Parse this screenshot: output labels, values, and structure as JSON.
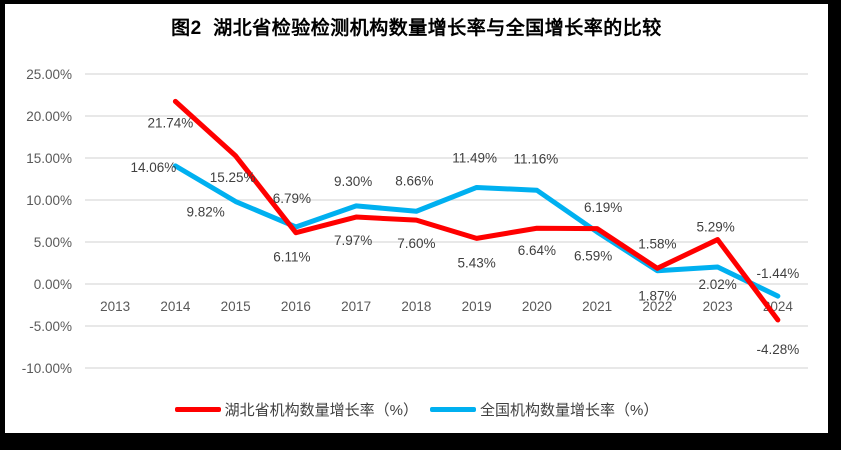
{
  "styles": {
    "frame_color": "#000000",
    "chart_background": "#FFFFFF",
    "grid_color": "#D9D9D9",
    "axis_label_color": "#595959",
    "data_label_color": "#404040",
    "title_color": "#000000"
  },
  "chart_data": {
    "type": "line",
    "title": "图2  湖北省检验检测机构数量增长率与全国增长率的比较",
    "categories": [
      "2013",
      "2014",
      "2015",
      "2016",
      "2017",
      "2018",
      "2019",
      "2020",
      "2021",
      "2022",
      "2023",
      "2024"
    ],
    "series": [
      {
        "name": "湖北省机构数量增长率（%）",
        "color": "#FF0000",
        "values": [
          null,
          21.74,
          15.25,
          6.11,
          7.97,
          7.6,
          5.43,
          6.64,
          6.59,
          1.87,
          5.29,
          -4.28
        ],
        "point_labels": [
          null,
          "21.74%",
          "15.25%",
          "6.11%",
          "7.97%",
          "7.60%",
          "5.43%",
          "6.64%",
          "6.59%",
          "1.87%",
          "5.29%",
          "-4.28%"
        ],
        "label_offsets": [
          null,
          [
            -5,
            22
          ],
          [
            -3,
            22
          ],
          [
            -4,
            25
          ],
          [
            -3,
            24
          ],
          [
            0,
            24
          ],
          [
            0,
            25
          ],
          [
            0,
            23
          ],
          [
            -4,
            28
          ],
          [
            0,
            28
          ],
          [
            -2,
            -12
          ],
          [
            0,
            30
          ]
        ]
      },
      {
        "name": "全国机构数量增长率（%）",
        "color": "#00B0F0",
        "values": [
          null,
          14.06,
          9.82,
          6.79,
          9.3,
          8.66,
          11.49,
          11.16,
          6.19,
          1.58,
          2.02,
          -1.44
        ],
        "point_labels": [
          null,
          "14.06%",
          "9.82%",
          "6.79%",
          "9.30%",
          "8.66%",
          "11.49%",
          "11.16%",
          "6.19%",
          "1.58%",
          "2.02%",
          "-1.44%"
        ],
        "label_offsets": [
          null,
          [
            -22,
            2
          ],
          [
            -30,
            11
          ],
          [
            -4,
            -28
          ],
          [
            -3,
            -24
          ],
          [
            -2,
            -30
          ],
          [
            -2,
            -29
          ],
          [
            -1,
            -31
          ],
          [
            6,
            -24
          ],
          [
            0,
            -26
          ],
          [
            0,
            18
          ],
          [
            0,
            -22
          ]
        ]
      }
    ],
    "y_axis": {
      "min": -10,
      "max": 25,
      "step": 5,
      "ticks": [
        {
          "value": 25,
          "label": "25.00%"
        },
        {
          "value": 20,
          "label": "20.00%"
        },
        {
          "value": 15,
          "label": "15.00%"
        },
        {
          "value": 10,
          "label": "10.00%"
        },
        {
          "value": 5,
          "label": "5.00%"
        },
        {
          "value": 0,
          "label": "0.00%"
        },
        {
          "value": -5,
          "label": "-5.00%"
        },
        {
          "value": -10,
          "label": "-10.00%"
        }
      ]
    },
    "grid": true,
    "legend_position": "bottom"
  }
}
